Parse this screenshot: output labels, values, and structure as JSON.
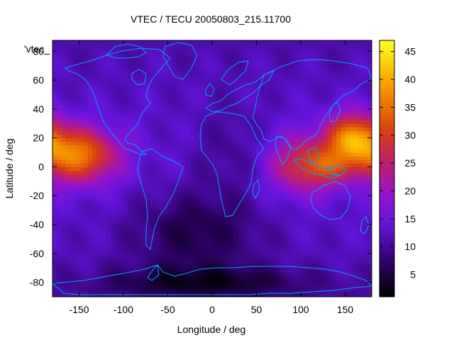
{
  "chart_data": {
    "type": "heatmap",
    "title": "VTEC / TECU 20050803_215.11700",
    "xlabel": "Longitude / deg",
    "ylabel": "Latitude / deg",
    "series_key_label": "'vtec_",
    "xlim": [
      -180,
      180
    ],
    "ylim": [
      -90,
      87.5
    ],
    "xticks": [
      "-150",
      "-100",
      "-50",
      "0",
      "50",
      "100",
      "150"
    ],
    "xtick_values": [
      -150,
      -100,
      -50,
      0,
      50,
      100,
      150
    ],
    "yticks": [
      "-80",
      "-60",
      "-40",
      "-20",
      "0",
      "20",
      "40",
      "60",
      "80"
    ],
    "ytick_values": [
      -80,
      -60,
      -40,
      -20,
      0,
      20,
      40,
      60,
      80
    ],
    "colorbar": {
      "range": [
        1,
        47
      ],
      "ticks": [
        "5",
        "10",
        "15",
        "20",
        "25",
        "30",
        "35",
        "40",
        "45"
      ],
      "tick_values": [
        5,
        10,
        15,
        20,
        25,
        30,
        35,
        40,
        45
      ],
      "colormap": "black-purple-red-orange-yellow"
    },
    "grid": {
      "lon_step": 5,
      "lat_step": 2.5,
      "lon_start": -180,
      "lat_start": -90
    },
    "features": [
      {
        "name": "equatorial-anomaly-pacific",
        "lon": -150,
        "lat": 5,
        "vtec": 36
      },
      {
        "name": "equatorial-anomaly-asia",
        "lon": 155,
        "lat": 20,
        "vtec": 46
      },
      {
        "name": "equatorial-anomaly-indian-ocean",
        "lon": 95,
        "lat": 0,
        "vtec": 30
      },
      {
        "name": "southern-polar-minimum",
        "lon": -20,
        "lat": -75,
        "vtec": 2
      },
      {
        "name": "south-atlantic-minimum",
        "lon": -30,
        "lat": -35,
        "vtec": 6
      }
    ],
    "coastlines_color": "#00a0ff"
  }
}
